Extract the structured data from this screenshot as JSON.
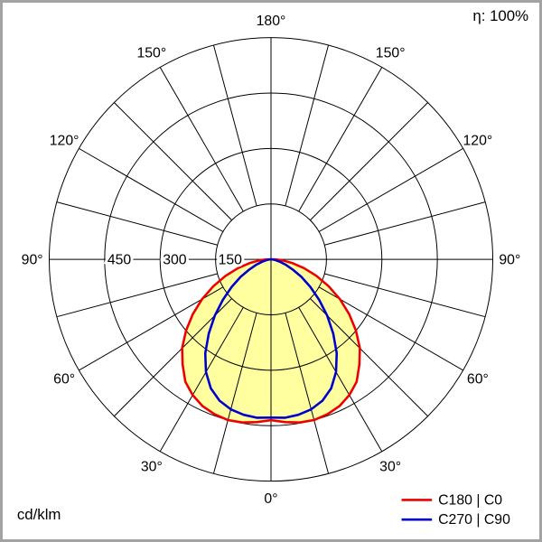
{
  "header": {
    "efficiency": "η: 100%"
  },
  "footer": {
    "unit": "cd/klm"
  },
  "legend": {
    "items": [
      {
        "label": "C180 | C0",
        "color": "#ee0000"
      },
      {
        "label": "C270 | C90",
        "color": "#0000cc"
      }
    ]
  },
  "chart_data": {
    "type": "polar-photometric",
    "units": "cd/klm",
    "efficiency_percent": 100,
    "orientation": "0-degrees-at-bottom",
    "grid": {
      "spoke_step_deg": 15,
      "radial_circles": [
        150,
        300,
        450,
        600
      ],
      "max_value": 600,
      "grid_color": "#000000"
    },
    "angle_labels": [
      {
        "deg": 0,
        "label": "0°"
      },
      {
        "deg": 30,
        "label": "30°"
      },
      {
        "deg": 60,
        "label": "60°"
      },
      {
        "deg": 90,
        "label": "90°"
      },
      {
        "deg": 120,
        "label": "120°"
      },
      {
        "deg": 150,
        "label": "150°"
      },
      {
        "deg": 180,
        "label": "180°"
      }
    ],
    "radial_labels": [
      {
        "value": 150,
        "label": "150"
      },
      {
        "value": 300,
        "label": "300"
      },
      {
        "value": 450,
        "label": "450"
      }
    ],
    "fill_color": "#ffffa0",
    "series": [
      {
        "name": "C180 | C0",
        "color": "#ee0000",
        "symmetric": true,
        "gamma_deg": [
          0,
          5,
          10,
          15,
          20,
          25,
          30,
          35,
          40,
          45,
          50,
          55,
          60,
          65,
          70,
          75,
          80,
          85,
          90
        ],
        "values_cd_per_klm": [
          435,
          442,
          448,
          450,
          446,
          438,
          424,
          404,
          372,
          340,
          300,
          258,
          215,
          172,
          131,
          93,
          59,
          32,
          14
        ]
      },
      {
        "name": "C270 | C90",
        "color": "#0000cc",
        "symmetric": true,
        "gamma_deg": [
          0,
          5,
          10,
          15,
          20,
          25,
          30,
          35,
          40,
          45,
          50,
          55,
          60,
          65,
          70,
          75,
          80,
          85,
          90
        ],
        "values_cd_per_klm": [
          428,
          430,
          427,
          420,
          407,
          385,
          352,
          310,
          262,
          215,
          170,
          130,
          95,
          65,
          42,
          25,
          13,
          6,
          2
        ]
      }
    ]
  }
}
